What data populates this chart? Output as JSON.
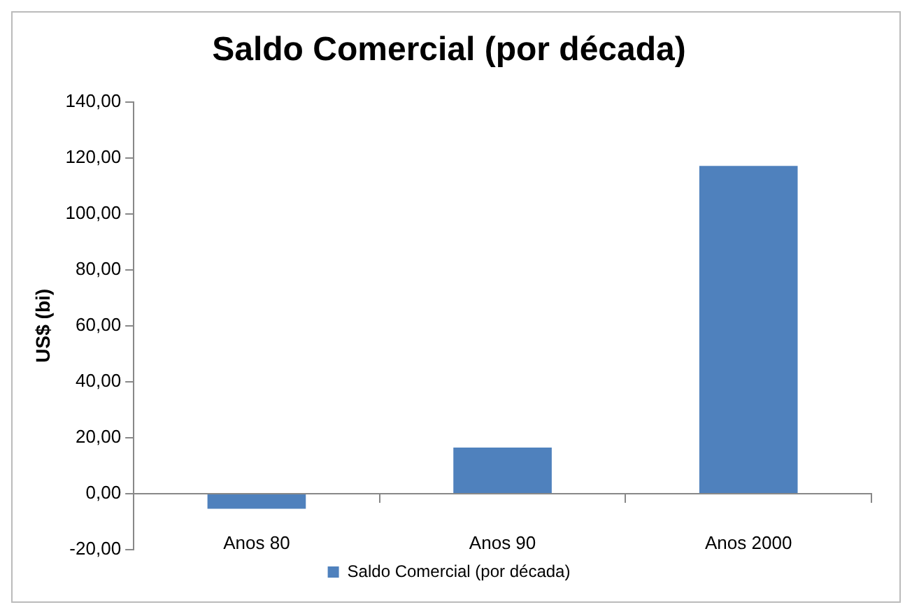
{
  "chart_data": {
    "type": "bar",
    "title": "Saldo Comercial (por década)",
    "ylabel": "US$ (bi)",
    "categories": [
      "Anos 80",
      "Anos 90",
      "Anos 2000"
    ],
    "series": [
      {
        "name": "Saldo Comercial (por década)",
        "color": "#4f81bd",
        "values": [
          -5.4,
          16.5,
          117.1
        ]
      }
    ],
    "ylim": [
      -20,
      140
    ],
    "yticks": [
      {
        "value": -20,
        "label": "-20,00"
      },
      {
        "value": 0,
        "label": "0,00"
      },
      {
        "value": 20,
        "label": "20,00"
      },
      {
        "value": 40,
        "label": "40,00"
      },
      {
        "value": 60,
        "label": "60,00"
      },
      {
        "value": 80,
        "label": "80,00"
      },
      {
        "value": 100,
        "label": "100,00"
      },
      {
        "value": 120,
        "label": "120,00"
      },
      {
        "value": 140,
        "label": "140,00"
      }
    ],
    "grid": false,
    "legend": "bottom"
  }
}
